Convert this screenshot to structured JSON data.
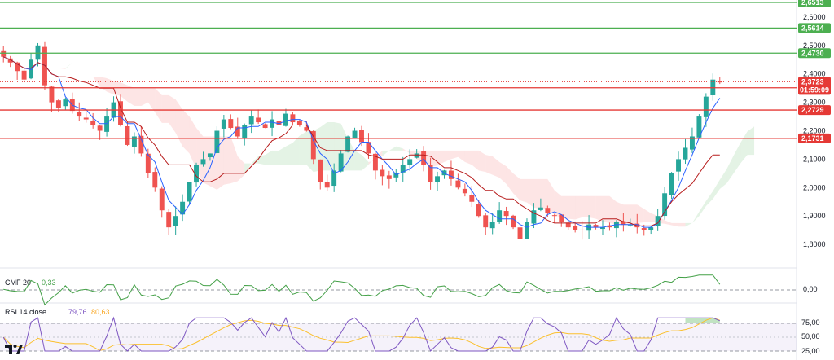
{
  "chart_data": [
    {
      "type": "candlestick",
      "panel": "price",
      "y_ticks": [
        "2,6000",
        "2,5000",
        "2,4000",
        "2,3000",
        "2,2000",
        "2,1000",
        "2,0000",
        "1,9000",
        "1,8000"
      ],
      "ylim": [
        1.72,
        2.66
      ],
      "horizontal_levels": [
        {
          "label": "2,6513",
          "value": 2.6513,
          "color": "#4caf50"
        },
        {
          "label": "2,5614",
          "value": 2.5614,
          "color": "#4caf50"
        },
        {
          "label": "2,4730",
          "value": 2.473,
          "color": "#4caf50"
        },
        {
          "label": "2,3512",
          "value": 2.3512,
          "color": "#e53935"
        },
        {
          "label": "2,2729",
          "value": 2.2729,
          "color": "#e53935"
        },
        {
          "label": "2,1731",
          "value": 2.1731,
          "color": "#e53935"
        }
      ],
      "current_price": {
        "label": "2,3723",
        "countdown": "01:59:09",
        "value": 2.3723,
        "color": "#e53935"
      },
      "candles_close": [
        2.46,
        2.44,
        2.41,
        2.38,
        2.45,
        2.5,
        2.36,
        2.3,
        2.28,
        2.31,
        2.27,
        2.25,
        2.24,
        2.22,
        2.2,
        2.25,
        2.3,
        2.22,
        2.15,
        2.18,
        2.12,
        2.05,
        2.0,
        1.92,
        1.86,
        1.9,
        1.95,
        2.02,
        2.08,
        2.1,
        2.12,
        2.2,
        2.24,
        2.21,
        2.18,
        2.22,
        2.25,
        2.23,
        2.21,
        2.24,
        2.22,
        2.26,
        2.23,
        2.22,
        2.2,
        2.1,
        2.02,
        2.0,
        2.06,
        2.12,
        2.18,
        2.2,
        2.16,
        2.12,
        2.06,
        2.04,
        2.03,
        2.05,
        2.08,
        2.1,
        2.12,
        2.08,
        2.02,
        2.04,
        2.06,
        2.03,
        2.0,
        1.98,
        1.95,
        1.9,
        1.86,
        1.88,
        1.92,
        1.9,
        1.86,
        1.82,
        1.88,
        1.92,
        1.93,
        1.91,
        1.9,
        1.88,
        1.86,
        1.85,
        1.85,
        1.87,
        1.86,
        1.86,
        1.86,
        1.88,
        1.87,
        1.87,
        1.86,
        1.85,
        1.86,
        1.9,
        1.98,
        2.05,
        2.1,
        2.14,
        2.18,
        2.25,
        2.32,
        2.38,
        2.37
      ]
    },
    {
      "type": "line",
      "panel": "CMF",
      "name": "CMF 20",
      "value_label": "0,33",
      "y_ticks": [
        "0,00"
      ],
      "ylim": [
        -0.6,
        0.6
      ]
    },
    {
      "type": "line",
      "panel": "RSI",
      "name": "RSI 14 close",
      "value_label": "79,76",
      "ma_value_label": "80,63",
      "y_ticks": [
        "75,00",
        "50,00",
        "25,00"
      ],
      "ylim": [
        15,
        95
      ]
    }
  ],
  "colors": {
    "up": "#26a69a",
    "down": "#ef5350",
    "support": "#4caf50",
    "resistance": "#e53935",
    "cmf_line": "#43a047",
    "rsi_line": "#7e57c2",
    "rsi_ma": "#fbc02d"
  },
  "logo": "tradingview-logo-icon"
}
